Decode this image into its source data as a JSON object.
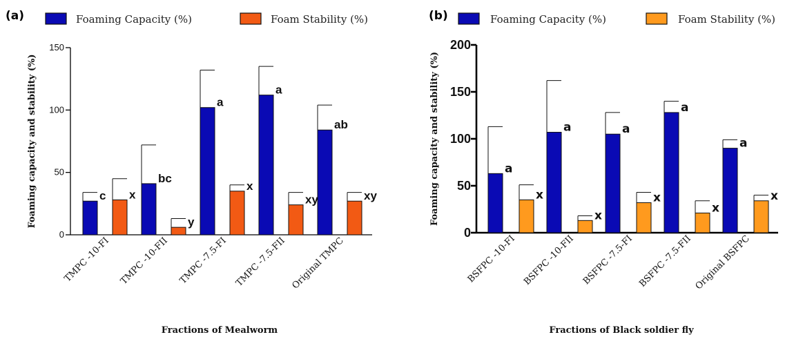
{
  "chart_data": [
    {
      "type": "bar",
      "panel_label": "(a)",
      "categories": [
        "TMPC -10-FI",
        "TMPC -10-FII",
        "TMPC -7.5-FI",
        "TMPC -7.5-FII",
        "Original TMPC"
      ],
      "series": [
        {
          "name": "Foaming Capacity (%)",
          "color": "#0a0ab4",
          "values": [
            27,
            41,
            102,
            112,
            84
          ],
          "errors": [
            7,
            31,
            30,
            23,
            20
          ],
          "letters": [
            "c",
            "bc",
            "a",
            "a",
            "ab"
          ]
        },
        {
          "name": "Foam Stability (%)",
          "color": "#f25a14",
          "values": [
            28,
            6,
            35,
            24,
            27
          ],
          "errors": [
            17,
            7,
            5,
            10,
            7
          ],
          "letters": [
            "x",
            "y",
            "x",
            "xy",
            "xy"
          ]
        }
      ],
      "ylabel": "Foaming capacity and stability (%)",
      "xlabel": "Fractions of Mealworm",
      "ylim": [
        0,
        150
      ],
      "yticks": [
        "0",
        "50",
        "100",
        "150"
      ],
      "legend": "top"
    },
    {
      "type": "bar",
      "panel_label": "(b)",
      "categories": [
        "BSFPC -10-FI",
        "BSFPC -10-FII",
        "BSFPC -7.5-FI",
        "BSFPC -7.5-FII",
        "Original BSFPC"
      ],
      "series": [
        {
          "name": "Foaming Capacity (%)",
          "color": "#0a0ab4",
          "values": [
            63,
            107,
            105,
            128,
            90
          ],
          "errors": [
            50,
            55,
            23,
            12,
            9
          ],
          "letters": [
            "a",
            "a",
            "a",
            "a",
            "a"
          ]
        },
        {
          "name": "Foam Stability (%)",
          "color": "#ff9a1e",
          "values": [
            35,
            13,
            32,
            21,
            34
          ],
          "errors": [
            16,
            5,
            11,
            13,
            6
          ],
          "letters": [
            "x",
            "x",
            "x",
            "x",
            "x"
          ]
        }
      ],
      "ylabel": "Foaming capacity and stability (%)",
      "xlabel": "Fractions of Black soldier fly",
      "ylim": [
        0,
        200
      ],
      "yticks": [
        "0",
        "50",
        "100",
        "150",
        "200"
      ],
      "legend": "top"
    }
  ]
}
